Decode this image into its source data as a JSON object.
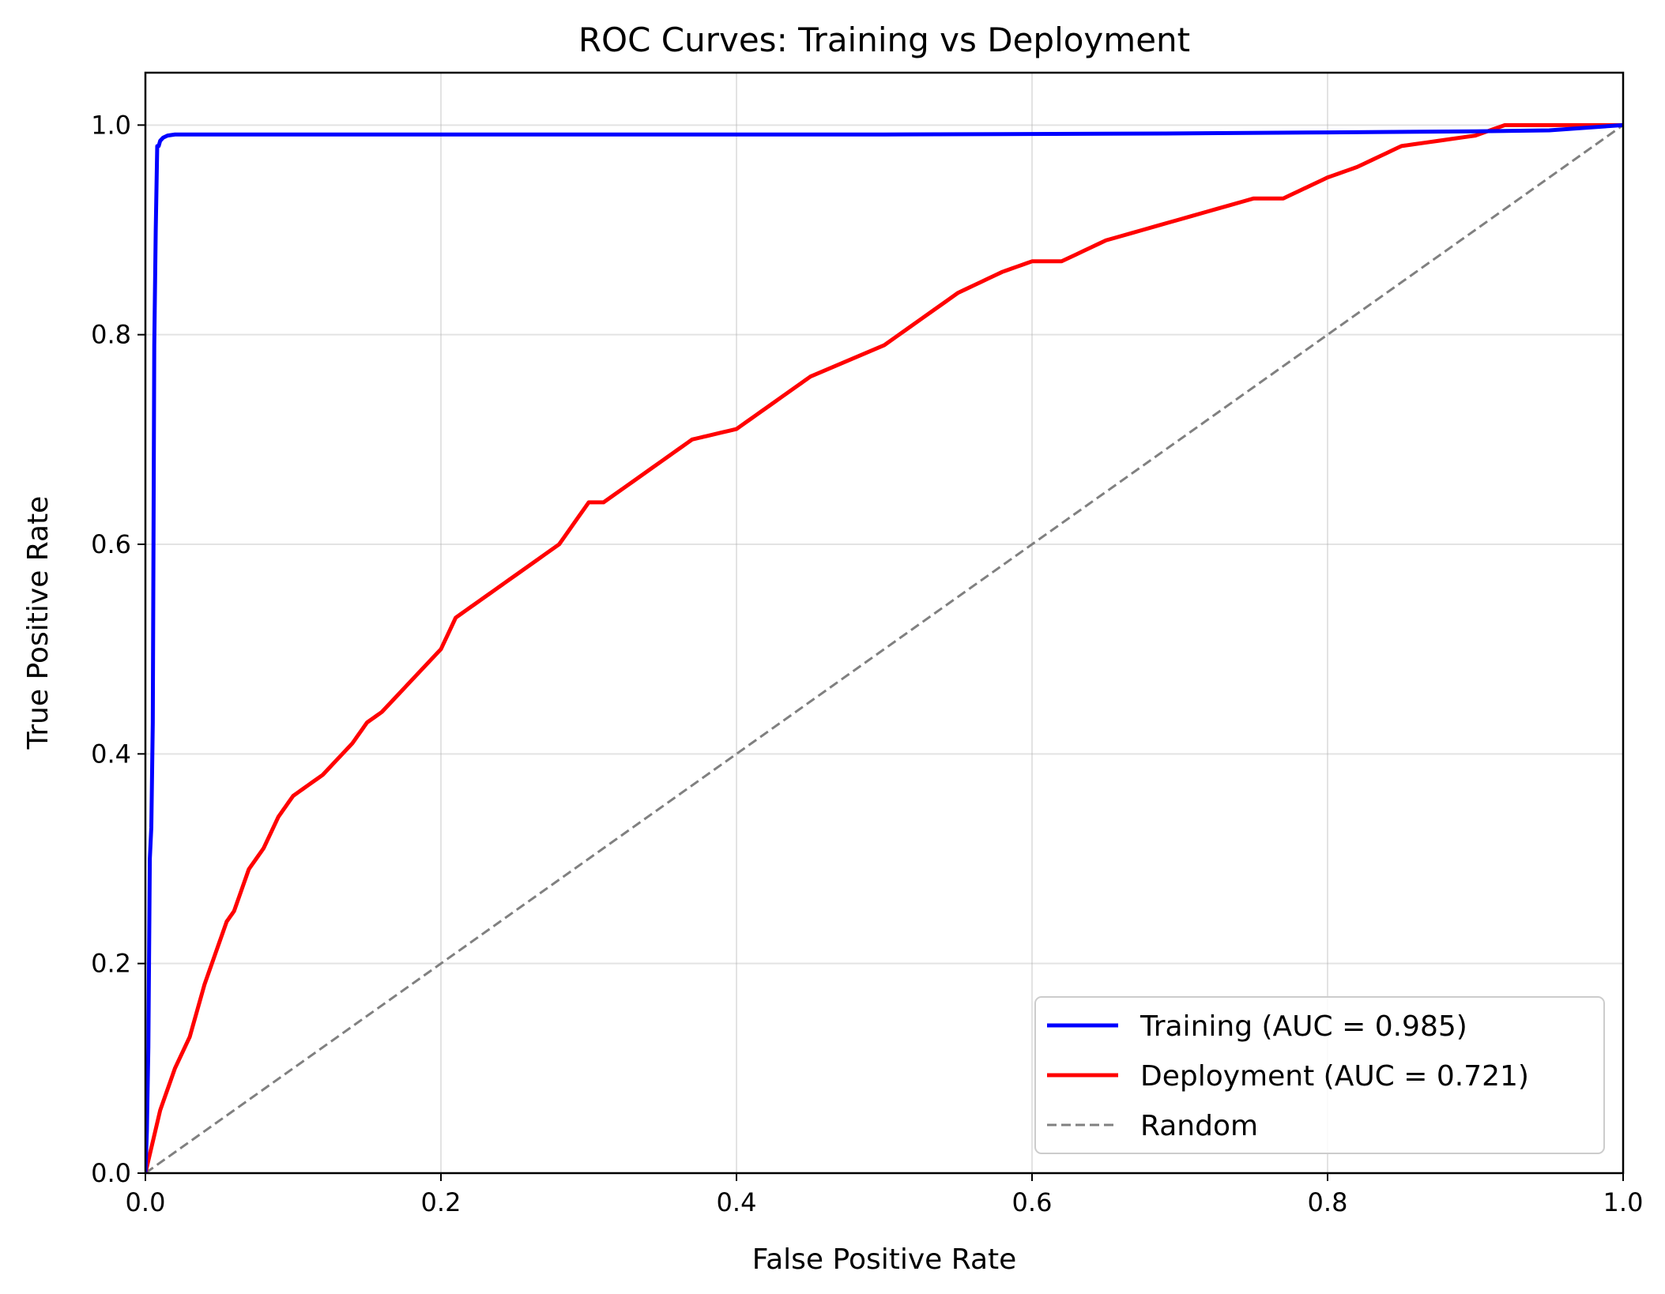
{
  "chart_data": {
    "type": "line",
    "title": "ROC Curves: Training vs Deployment",
    "xlabel": "False Positive Rate",
    "ylabel": "True Positive Rate",
    "xlim": [
      0.0,
      1.0
    ],
    "ylim": [
      0.0,
      1.05
    ],
    "xticks": [
      "0.0",
      "0.2",
      "0.4",
      "0.6",
      "0.8",
      "1.0"
    ],
    "yticks": [
      "0.0",
      "0.2",
      "0.4",
      "0.6",
      "0.8",
      "1.0"
    ],
    "grid": true,
    "legend_position": "lower-right",
    "series": [
      {
        "name": "Training (AUC = 0.985)",
        "color": "#0000ff",
        "style": "solid",
        "x": [
          0.0,
          0.001,
          0.002,
          0.003,
          0.004,
          0.005,
          0.006,
          0.007,
          0.008,
          0.009,
          0.01,
          0.012,
          0.015,
          0.02,
          0.1,
          0.3,
          0.5,
          0.69,
          0.8,
          0.9,
          0.95,
          1.0
        ],
        "y": [
          0.0,
          0.04,
          0.12,
          0.3,
          0.33,
          0.43,
          0.79,
          0.9,
          0.98,
          0.98,
          0.985,
          0.988,
          0.99,
          0.991,
          0.991,
          0.991,
          0.991,
          0.992,
          0.993,
          0.994,
          0.995,
          1.0
        ]
      },
      {
        "name": "Deployment (AUC = 0.721)",
        "color": "#ff0000",
        "style": "solid",
        "x": [
          0.0,
          0.005,
          0.01,
          0.02,
          0.03,
          0.04,
          0.05,
          0.055,
          0.06,
          0.07,
          0.08,
          0.09,
          0.1,
          0.12,
          0.14,
          0.15,
          0.16,
          0.18,
          0.2,
          0.21,
          0.23,
          0.25,
          0.28,
          0.3,
          0.31,
          0.35,
          0.37,
          0.4,
          0.42,
          0.45,
          0.5,
          0.55,
          0.58,
          0.6,
          0.62,
          0.65,
          0.7,
          0.75,
          0.77,
          0.8,
          0.82,
          0.85,
          0.9,
          0.92,
          1.0
        ],
        "y": [
          0.0,
          0.03,
          0.06,
          0.1,
          0.13,
          0.18,
          0.22,
          0.24,
          0.25,
          0.29,
          0.31,
          0.34,
          0.36,
          0.38,
          0.41,
          0.43,
          0.44,
          0.47,
          0.5,
          0.53,
          0.55,
          0.57,
          0.6,
          0.64,
          0.64,
          0.68,
          0.7,
          0.71,
          0.73,
          0.76,
          0.79,
          0.84,
          0.86,
          0.87,
          0.87,
          0.89,
          0.91,
          0.93,
          0.93,
          0.95,
          0.96,
          0.98,
          0.99,
          1.0,
          1.0
        ]
      },
      {
        "name": "Random",
        "color": "#808080",
        "style": "dashed",
        "x": [
          0.0,
          1.0
        ],
        "y": [
          0.0,
          1.0
        ]
      }
    ]
  }
}
